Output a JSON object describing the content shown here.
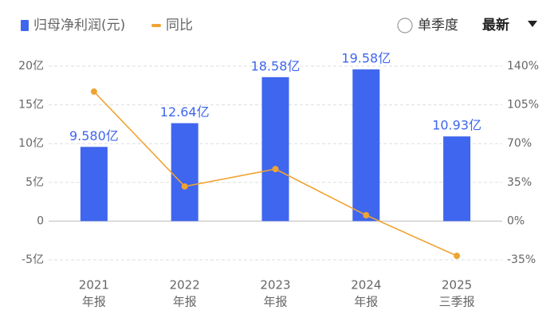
{
  "chart_data": {
    "type": "bar_line",
    "categories": [
      "2021",
      "2022",
      "2023",
      "2024",
      "2025"
    ],
    "category_sublabels": [
      "年报",
      "年报",
      "年报",
      "年报",
      "三季报"
    ],
    "series": [
      {
        "name": "归母净利润(元)",
        "color": "#3f66ee",
        "type": "bar",
        "values": [
          9.58,
          12.64,
          18.58,
          19.58,
          10.93
        ],
        "value_labels": [
          "9.580亿",
          "12.64亿",
          "18.58亿",
          "19.58亿",
          "10.93亿"
        ]
      },
      {
        "name": "同比",
        "color": "#f0a332",
        "type": "line",
        "axis": "y2",
        "values": [
          117,
          31.3,
          47,
          5.3,
          -31.4
        ]
      }
    ],
    "ylim": [
      -5,
      20
    ],
    "yticks": [
      {
        "value": -5,
        "label": "-5亿"
      },
      0,
      {
        "value": 5,
        "label": "5亿"
      },
      {
        "value": 10,
        "label": "10亿"
      },
      {
        "value": 15,
        "label": "15亿"
      },
      {
        "value": 20,
        "label": "20亿"
      }
    ],
    "y2lim": [
      -35,
      140
    ],
    "y2ticks": [
      {
        "value": -35,
        "label": "-35%"
      },
      {
        "value": 0,
        "label": "0%"
      },
      {
        "value": 35,
        "label": "35%"
      },
      {
        "value": 70,
        "label": "70%"
      },
      {
        "value": 105,
        "label": "105%"
      },
      {
        "value": 140,
        "label": "140%"
      }
    ],
    "grid": true,
    "controls": {
      "toggle": "单季度",
      "dropdown": "最新"
    }
  }
}
